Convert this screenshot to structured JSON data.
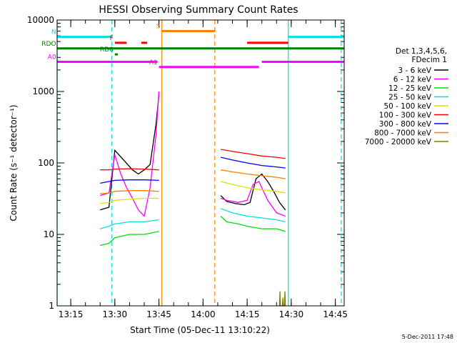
{
  "chart_data": {
    "type": "line",
    "title": "HESSI Observing Summary Count Rates",
    "xlabel": "Start Time (05-Dec-11 13:10:22)",
    "ylabel": "Count Rate (s⁻¹ detector⁻¹)",
    "yscale": "log",
    "ylim": [
      1,
      10000
    ],
    "xlim": [
      "13:10:22",
      "14:48:00"
    ],
    "x_ticks": [
      "13:15",
      "13:30",
      "13:45",
      "14:00",
      "14:15",
      "14:30",
      "14:45"
    ],
    "y_ticks": [
      "1",
      "10",
      "100",
      "1000",
      "10000"
    ],
    "footer_date": "5-Dec-2011 17:48",
    "legend": {
      "placement": "right",
      "header": [
        "Det 1,3,4,5,6,",
        "FDecim 1"
      ],
      "entries": [
        {
          "label": "3 - 6 keV",
          "color": "#000000"
        },
        {
          "label": "6 - 12 keV",
          "color": "#ff00ff"
        },
        {
          "label": "12 - 25 keV",
          "color": "#00e000"
        },
        {
          "label": "25 - 50 keV",
          "color": "#00e0e0"
        },
        {
          "label": "50 - 100 keV",
          "color": "#e0e000"
        },
        {
          "label": "100 - 300 keV",
          "color": "#ff0000"
        },
        {
          "label": "300 - 800 keV",
          "color": "#0000ff"
        },
        {
          "label": "800 - 7000 keV",
          "color": "#ff8000"
        },
        {
          "label": "7000 - 20000 keV",
          "color": "#808000"
        }
      ]
    },
    "flag_bars": [
      {
        "label": "N",
        "color": "#00e0e0",
        "y": 5800,
        "segments": [
          [
            "13:10:30",
            "13:29:00"
          ],
          [
            "14:29:00",
            "14:48:00"
          ]
        ]
      },
      {
        "label": "S",
        "color": "#ff8000",
        "y": 7000,
        "segments": [
          [
            "13:46:00",
            "14:04:00"
          ]
        ]
      },
      {
        "label": "F",
        "color": "#ff0000",
        "y": 4800,
        "segments": [
          [
            "13:30:00",
            "13:34:00"
          ],
          [
            "13:39:00",
            "13:41:00"
          ],
          [
            "14:15:00",
            "14:29:00"
          ]
        ]
      },
      {
        "label": "RDO",
        "color": "#008000",
        "y": 4000,
        "segments": [
          [
            "13:10:30",
            "14:48:00"
          ]
        ]
      },
      {
        "label": "RD6",
        "color": "#008000",
        "y": 3300,
        "segments": [
          [
            "13:30:00",
            "13:31:00"
          ]
        ]
      },
      {
        "label": "A1",
        "color": "#ff00ff",
        "y": 2200,
        "segments": [
          [
            "13:45:00",
            "14:19:00"
          ]
        ]
      },
      {
        "label": "A0",
        "color": "#ff00ff",
        "y": 2600,
        "segments": [
          [
            "13:10:30",
            "13:44:30"
          ],
          [
            "14:20:00",
            "14:48:00"
          ]
        ]
      }
    ],
    "event_lines": [
      {
        "x": "13:10:22",
        "color": "#00e0e0",
        "style": "solid"
      },
      {
        "x": "13:29:00",
        "color": "#00e0e0",
        "style": "dashed"
      },
      {
        "x": "13:46:00",
        "color": "#ff8000",
        "style": "solid"
      },
      {
        "x": "14:04:00",
        "color": "#ff8000",
        "style": "dashed"
      },
      {
        "x": "14:29:00",
        "color": "#00e0e0",
        "style": "solid"
      },
      {
        "x": "14:47:00",
        "color": "#00e0e0",
        "style": "dashed"
      }
    ],
    "series": [
      {
        "name": "3 - 6 keV",
        "color": "#000000",
        "segments": [
          [
            [
              "13:25:00",
              22
            ],
            [
              "13:28:00",
              24
            ],
            [
              "13:30:00",
              150
            ],
            [
              "13:33:00",
              110
            ],
            [
              "13:36:00",
              80
            ],
            [
              "13:38:00",
              70
            ],
            [
              "13:40:00",
              80
            ],
            [
              "13:42:00",
              95
            ],
            [
              "13:44:00",
              350
            ],
            [
              "13:45:00",
              900
            ]
          ],
          [
            [
              "14:06:00",
              35
            ],
            [
              "14:08:00",
              29
            ],
            [
              "14:11:00",
              27
            ],
            [
              "14:14:00",
              26
            ],
            [
              "14:16:00",
              28
            ],
            [
              "14:18:00",
              60
            ],
            [
              "14:20:00",
              70
            ],
            [
              "14:22:00",
              55
            ],
            [
              "14:24:00",
              40
            ],
            [
              "14:26:00",
              28
            ],
            [
              "14:28:00",
              22
            ]
          ]
        ]
      },
      {
        "name": "6 - 12 keV",
        "color": "#ff00ff",
        "segments": [
          [
            [
              "13:25:00",
              35
            ],
            [
              "13:28:00",
              38
            ],
            [
              "13:30:00",
              130
            ],
            [
              "13:32:00",
              70
            ],
            [
              "13:34:00",
              45
            ],
            [
              "13:36:00",
              32
            ],
            [
              "13:38:00",
              22
            ],
            [
              "13:40:00",
              18
            ],
            [
              "13:42:00",
              45
            ],
            [
              "13:44:00",
              250
            ],
            [
              "13:45:00",
              1000
            ]
          ],
          [
            [
              "14:06:00",
              32
            ],
            [
              "14:08:00",
              30
            ],
            [
              "14:12:00",
              28
            ],
            [
              "14:15:00",
              30
            ],
            [
              "14:17:00",
              50
            ],
            [
              "14:19:00",
              55
            ],
            [
              "14:22:00",
              30
            ],
            [
              "14:25:00",
              20
            ],
            [
              "14:28:00",
              18
            ]
          ]
        ]
      },
      {
        "name": "12 - 25 keV",
        "color": "#00e000",
        "segments": [
          [
            [
              "13:25:00",
              7
            ],
            [
              "13:28:00",
              7.5
            ],
            [
              "13:30:00",
              9
            ],
            [
              "13:35:00",
              10
            ],
            [
              "13:40:00",
              10
            ],
            [
              "13:45:00",
              11
            ]
          ],
          [
            [
              "14:06:00",
              18
            ],
            [
              "14:08:00",
              15
            ],
            [
              "14:12:00",
              14
            ],
            [
              "14:15:00",
              13
            ],
            [
              "14:20:00",
              12
            ],
            [
              "14:25:00",
              12
            ],
            [
              "14:28:00",
              11
            ]
          ]
        ]
      },
      {
        "name": "25 - 50 keV",
        "color": "#00e0e0",
        "segments": [
          [
            [
              "13:25:00",
              12
            ],
            [
              "13:28:00",
              13
            ],
            [
              "13:30:00",
              14
            ],
            [
              "13:35:00",
              15
            ],
            [
              "13:40:00",
              15
            ],
            [
              "13:45:00",
              16
            ]
          ],
          [
            [
              "14:06:00",
              23
            ],
            [
              "14:10:00",
              20
            ],
            [
              "14:15:00",
              18
            ],
            [
              "14:20:00",
              17
            ],
            [
              "14:25:00",
              16
            ],
            [
              "14:28:00",
              15
            ]
          ]
        ]
      },
      {
        "name": "50 - 100 keV",
        "color": "#e0e000",
        "segments": [
          [
            [
              "13:25:00",
              27
            ],
            [
              "13:28:00",
              28
            ],
            [
              "13:30:00",
              30
            ],
            [
              "13:35:00",
              31
            ],
            [
              "13:40:00",
              32
            ],
            [
              "13:45:00",
              32
            ]
          ],
          [
            [
              "14:06:00",
              55
            ],
            [
              "14:10:00",
              50
            ],
            [
              "14:15:00",
              45
            ],
            [
              "14:20:00",
              42
            ],
            [
              "14:25:00",
              40
            ],
            [
              "14:28:00",
              38
            ]
          ]
        ]
      },
      {
        "name": "100 - 300 keV",
        "color": "#ff0000",
        "segments": [
          [
            [
              "13:25:00",
              80
            ],
            [
              "13:28:00",
              80
            ],
            [
              "13:30:00",
              82
            ],
            [
              "13:35:00",
              83
            ],
            [
              "13:40:00",
              82
            ],
            [
              "13:45:00",
              80
            ]
          ],
          [
            [
              "14:06:00",
              155
            ],
            [
              "14:10:00",
              145
            ],
            [
              "14:15:00",
              135
            ],
            [
              "14:20:00",
              125
            ],
            [
              "14:25:00",
              120
            ],
            [
              "14:28:00",
              115
            ]
          ]
        ]
      },
      {
        "name": "300 - 800 keV",
        "color": "#0000ff",
        "segments": [
          [
            [
              "13:25:00",
              52
            ],
            [
              "13:28:00",
              55
            ],
            [
              "13:30:00",
              57
            ],
            [
              "13:35:00",
              58
            ],
            [
              "13:40:00",
              58
            ],
            [
              "13:45:00",
              57
            ]
          ],
          [
            [
              "14:06:00",
              120
            ],
            [
              "14:10:00",
              110
            ],
            [
              "14:15:00",
              100
            ],
            [
              "14:20:00",
              92
            ],
            [
              "14:25:00",
              88
            ],
            [
              "14:28:00",
              85
            ]
          ]
        ]
      },
      {
        "name": "800 - 7000 keV",
        "color": "#ff8000",
        "segments": [
          [
            [
              "13:25:00",
              37
            ],
            [
              "13:28:00",
              38
            ],
            [
              "13:30:00",
              40
            ],
            [
              "13:35:00",
              41
            ],
            [
              "13:40:00",
              41
            ],
            [
              "13:45:00",
              40
            ]
          ],
          [
            [
              "14:06:00",
              80
            ],
            [
              "14:10:00",
              75
            ],
            [
              "14:15:00",
              70
            ],
            [
              "14:20:00",
              66
            ],
            [
              "14:25:00",
              63
            ],
            [
              "14:28:00",
              60
            ]
          ]
        ]
      },
      {
        "name": "7000 - 20000 keV",
        "color": "#808000",
        "segments": [
          [
            [
              "14:26:00",
              1
            ],
            [
              "14:26:10",
              1.6
            ],
            [
              "14:26:20",
              1
            ],
            [
              "14:27:00",
              1
            ],
            [
              "14:27:10",
              1.3
            ],
            [
              "14:27:20",
              1
            ],
            [
              "14:27:40",
              1
            ],
            [
              "14:27:50",
              1.6
            ],
            [
              "14:28:00",
              1
            ]
          ]
        ]
      }
    ]
  }
}
